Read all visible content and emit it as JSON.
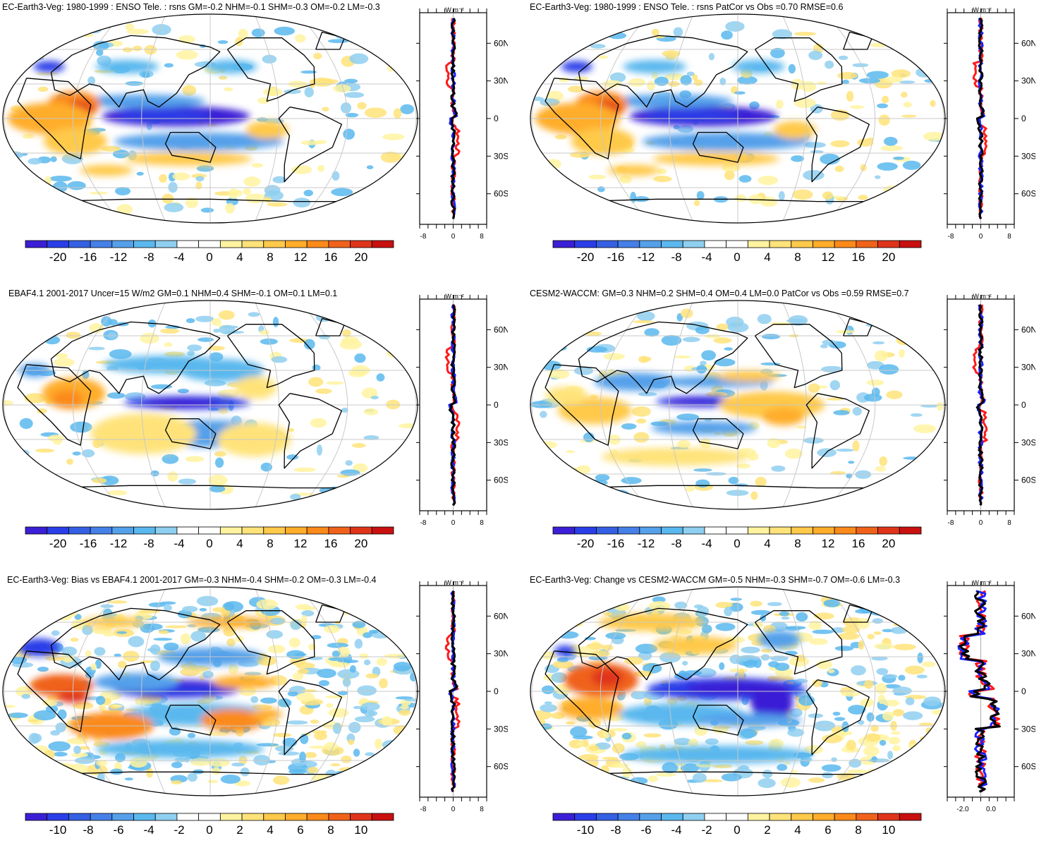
{
  "panels": [
    {
      "title": "EC-Earth3-Veg: 1980-1999 : ENSO Tele. : rsns GM=-0.2 NHM=-0.1 SHM=-0.3 OM=-0.2 LM=-0.3",
      "scale": "big",
      "colorbar_labels": [
        "-20",
        "-16",
        "-12",
        "-8",
        "-4",
        "0",
        "4",
        "8",
        "12",
        "16",
        "20"
      ],
      "zonal_xticks": [
        "-8",
        "0",
        "8"
      ],
      "zonal_unit": "W m⁻²",
      "lat_labels": [
        "60N",
        "30N",
        "0",
        "30S",
        "60S"
      ]
    },
    {
      "title": "EC-Earth3-Veg: 1980-1999 : ENSO Tele. : rsns PatCor vs Obs =0.70 RMSE=0.6",
      "scale": "big",
      "colorbar_labels": [
        "-20",
        "-16",
        "-12",
        "-8",
        "-4",
        "0",
        "4",
        "8",
        "12",
        "16",
        "20"
      ],
      "zonal_xticks": [
        "-8",
        "0",
        "8"
      ],
      "zonal_unit": "W m⁻²",
      "lat_labels": [
        "60N",
        "30N",
        "0",
        "30S",
        "60S"
      ]
    },
    {
      "title": "EBAF4.1 2001-2017 Uncer=15 W/m2 GM=0.1 NHM=0.4 SHM=-0.1 OM=0.1 LM=0.1",
      "scale": "big",
      "colorbar_labels": [
        "-20",
        "-16",
        "-12",
        "-8",
        "-4",
        "0",
        "4",
        "8",
        "12",
        "16",
        "20"
      ],
      "zonal_xticks": [
        "-8",
        "0",
        "8"
      ],
      "zonal_unit": "W m⁻²",
      "lat_labels": [
        "60N",
        "30N",
        "0",
        "30S",
        "60S"
      ]
    },
    {
      "title": "CESM2-WACCM: GM=0.3 NHM=0.2 SHM=0.4 OM=0.4 LM=0.0 PatCor vs Obs =0.59 RMSE=0.7",
      "scale": "big",
      "colorbar_labels": [
        "-20",
        "-16",
        "-12",
        "-8",
        "-4",
        "0",
        "4",
        "8",
        "12",
        "16",
        "20"
      ],
      "zonal_xticks": [
        "-8",
        "0",
        "8"
      ],
      "zonal_unit": "W m⁻²",
      "lat_labels": [
        "60N",
        "30N",
        "0",
        "30S",
        "60S"
      ]
    },
    {
      "title": "EC-Earth3-Veg: Bias vs EBAF4.1 2001-2017 GM=-0.3 NHM=-0.4 SHM=-0.2 OM=-0.3 LM=-0.4",
      "scale": "small",
      "colorbar_labels": [
        "-10",
        "-8",
        "-6",
        "-4",
        "-2",
        "0",
        "2",
        "4",
        "6",
        "8",
        "10"
      ],
      "zonal_xticks": [
        "-8",
        "0",
        "8"
      ],
      "zonal_unit": "W m⁻²",
      "lat_labels": [
        "60N",
        "30N",
        "0",
        "30S",
        "60S"
      ]
    },
    {
      "title": "EC-Earth3-Veg: Change vs CESM2-WACCM GM=-0.5 NHM=-0.3 SHM=-0.7 OM=-0.6 LM=-0.3",
      "scale": "small",
      "colorbar_labels": [
        "-10",
        "-8",
        "-6",
        "-4",
        "-2",
        "0",
        "2",
        "4",
        "6",
        "8",
        "10"
      ],
      "zonal_xticks": [
        "-2.0",
        "0.0"
      ],
      "zonal_unit": "W m⁻²",
      "lat_labels": [
        "60N",
        "30N",
        "0",
        "30S",
        "60S"
      ]
    }
  ],
  "colors": {
    "colorbar": [
      "#3b1fd6",
      "#2a3ee8",
      "#3560e4",
      "#4580e8",
      "#55a0ea",
      "#5ab8ee",
      "#8fcff0",
      "#ffffff",
      "#ffffff",
      "#fff3a0",
      "#ffe37a",
      "#ffc94a",
      "#ffad2a",
      "#fb8a1a",
      "#f0621a",
      "#e0341a",
      "#c8100f"
    ],
    "zonal_lines": {
      "red": "#ff1a1a",
      "blue": "#1a22ff",
      "black": "#000000"
    },
    "coast": "#000000",
    "grid": "#c8c8c8"
  }
}
